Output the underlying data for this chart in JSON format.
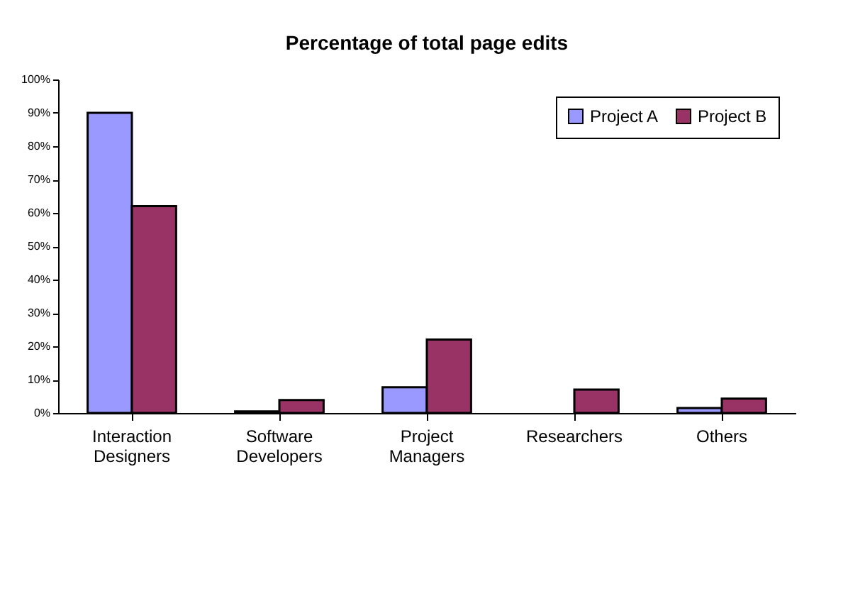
{
  "chart_data": {
    "type": "bar",
    "title": "Percentage of total page edits",
    "categories": [
      "Interaction Designers",
      "Software Developers",
      "Project Managers",
      "Researchers",
      "Others"
    ],
    "series": [
      {
        "name": "Project A",
        "color": "#9999ff",
        "values": [
          90,
          0.5,
          7.7,
          null,
          1.5
        ]
      },
      {
        "name": "Project B",
        "color": "#993366",
        "values": [
          62,
          3.9,
          22,
          7,
          4.3
        ]
      }
    ],
    "ylim": [
      0,
      100
    ],
    "yticks": [
      {
        "value": 0,
        "label": "0%"
      },
      {
        "value": 10,
        "label": "10%"
      },
      {
        "value": 20,
        "label": "20%"
      },
      {
        "value": 30,
        "label": "30%"
      },
      {
        "value": 40,
        "label": "40%"
      },
      {
        "value": 50,
        "label": "50%"
      },
      {
        "value": 60,
        "label": "60%"
      },
      {
        "value": 70,
        "label": "70%"
      },
      {
        "value": 80,
        "label": "80%"
      },
      {
        "value": 90,
        "label": "90%"
      },
      {
        "value": 100,
        "label": "100%"
      }
    ],
    "grid": false,
    "legend": "top right"
  }
}
